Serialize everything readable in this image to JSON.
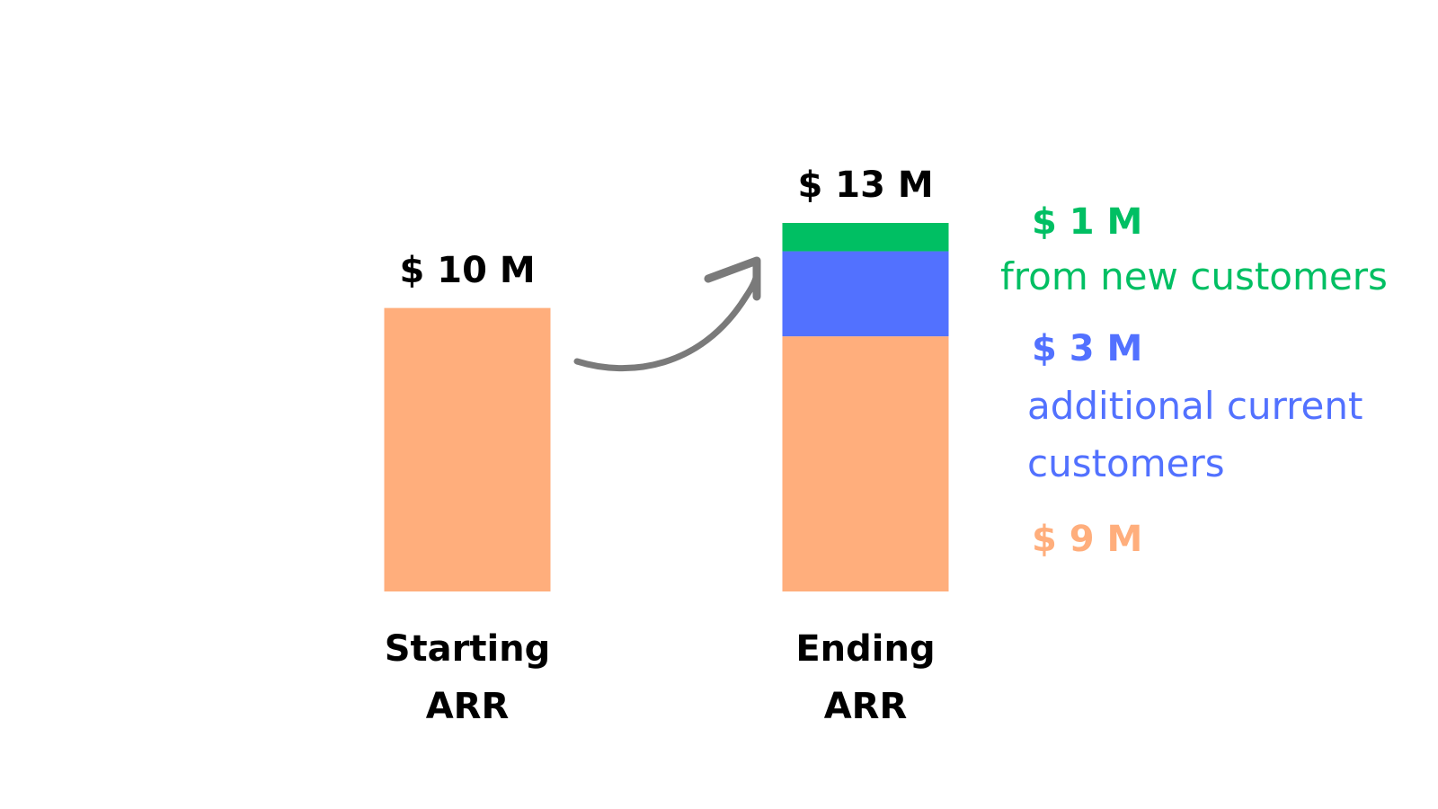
{
  "chart_data": {
    "type": "stacked_bar",
    "categories": [
      "Starting ARR",
      "Ending ARR"
    ],
    "series": [
      {
        "color": "#ffae7c",
        "values": [
          10,
          9
        ],
        "value_labels": [
          "$ 10 M",
          "$ 9 M"
        ]
      },
      {
        "name": "additional current customers",
        "color": "#5271ff",
        "values": [
          null,
          3
        ],
        "value_labels": [
          null,
          "$ 3 M"
        ]
      },
      {
        "name": "from new customers",
        "color": "#00bf63",
        "values": [
          null,
          1
        ],
        "value_labels": [
          null,
          "$ 1 M"
        ]
      }
    ],
    "total_label": "$ 13 M"
  }
}
